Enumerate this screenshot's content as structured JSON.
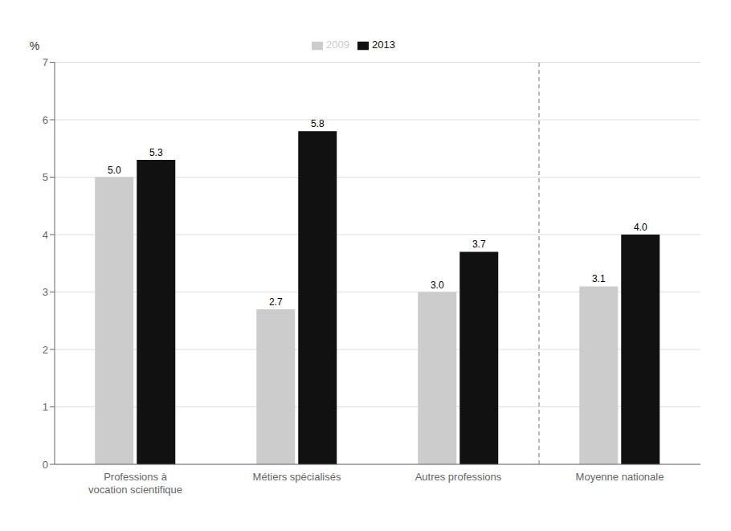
{
  "chart_data": {
    "type": "bar",
    "categories": [
      "Professions à\nvocation scientifique",
      "Métiers spécialisés",
      "Autres professions",
      "Moyenne nationale"
    ],
    "series": [
      {
        "name": "2009",
        "color": "#cccccc",
        "values": [
          5.0,
          2.7,
          3.0,
          3.1
        ],
        "value_labels": [
          "5.0",
          "2.7",
          "3.0",
          "3.1"
        ]
      },
      {
        "name": "2013",
        "color": "#111111",
        "values": [
          5.3,
          5.8,
          3.7,
          4.0
        ],
        "value_labels": [
          "5.3",
          "5.8",
          "3.7",
          "4.0"
        ]
      }
    ],
    "ylabel": "%",
    "ylim": [
      0,
      7
    ],
    "yticks": [
      0,
      1,
      2,
      3,
      4,
      5,
      6,
      7
    ],
    "grid": true,
    "legend": "top",
    "data_labels": true
  }
}
